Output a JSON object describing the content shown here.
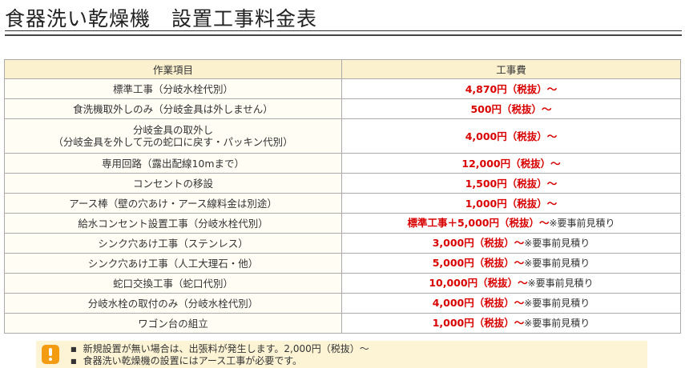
{
  "page_title": "食器洗い乾燥機　設置工事料金表",
  "table": {
    "headers": [
      "作業項目",
      "工事費"
    ],
    "rows": [
      {
        "item": "標準工事（分岐水栓代別）",
        "price": "4,870円（税抜）～",
        "note": ""
      },
      {
        "item": "食洗機取外しのみ（分岐金具は外しません）",
        "price": "500円（税抜）～",
        "note": ""
      },
      {
        "item": "分岐金具の取外し",
        "item2": "（分岐金具を外して元の蛇口に戻す・パッキン代別）",
        "price": "4,000円（税抜）～",
        "note": ""
      },
      {
        "item": "専用回路（露出配線10mまで）",
        "price": "12,000円（税抜）～",
        "note": ""
      },
      {
        "item": "コンセントの移設",
        "price": "1,500円（税抜）～",
        "note": ""
      },
      {
        "item": "アース棒（壁の穴あけ・アース線料金は別途）",
        "price": "1,000円（税抜）～",
        "note": ""
      },
      {
        "item": "給水コンセント設置工事（分岐水栓代別）",
        "price": "標準工事＋5,000円（税抜）～",
        "note": "※要事前見積り"
      },
      {
        "item": "シンク穴あけ工事（ステンレス）",
        "price": "3,000円（税抜）～",
        "note": "※要事前見積り"
      },
      {
        "item": "シンク穴あけ工事（人工大理石・他）",
        "price": "5,000円（税抜）～",
        "note": "※要事前見積り"
      },
      {
        "item": "蛇口交換工事（蛇口代別）",
        "price": "10,000円（税抜）～",
        "note": "※要事前見積り"
      },
      {
        "item": "分岐水栓の取付のみ（分岐水栓代別）",
        "price": "4,000円（税抜）～",
        "note": "※要事前見積り"
      },
      {
        "item": "ワゴン台の組立",
        "price": "1,000円（税抜）～",
        "note": "※要事前見積り"
      }
    ]
  },
  "notice": {
    "icon": "exclamation-icon",
    "items": [
      "新規設置が無い場合は、出張料が発生します。2,000円（税抜）～",
      "食器洗い乾燥機の設置にはアース工事が必要です。"
    ]
  }
}
